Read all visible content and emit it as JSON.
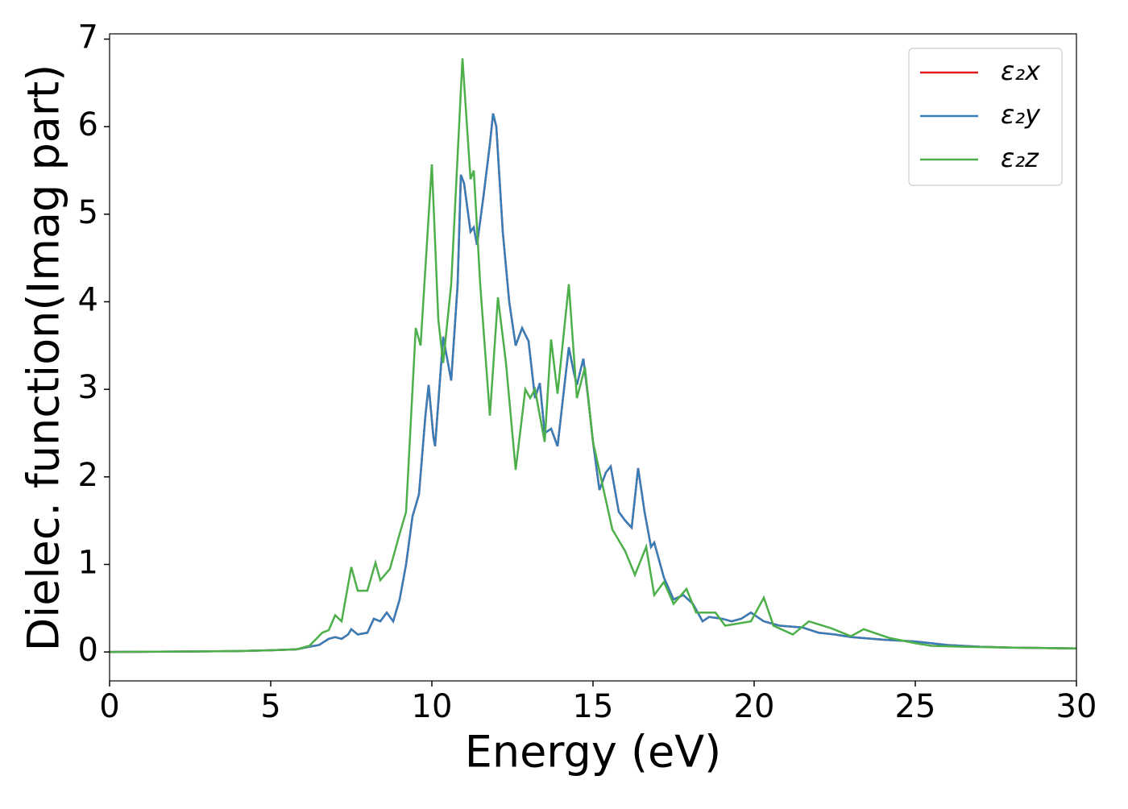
{
  "chart_data": {
    "type": "line",
    "x_label": "Energy (eV)",
    "y_label": "Dielec. function(Imag part)",
    "xlim": [
      0,
      30
    ],
    "ylim": [
      -0.33,
      7.06
    ],
    "xticks": [
      0,
      5,
      10,
      15,
      20,
      25,
      30
    ],
    "yticks": [
      0,
      1,
      2,
      3,
      4,
      5,
      6,
      7
    ],
    "legend": "upper right",
    "series": [
      {
        "name": "ε₂x",
        "color": "#e41a1c",
        "x": [
          0,
          2,
          4,
          5,
          5.8,
          6.2,
          6.5,
          6.8,
          7.0,
          7.2,
          7.4,
          7.5,
          7.7,
          8.0,
          8.2,
          8.4,
          8.6,
          8.8,
          9.0,
          9.2,
          9.4,
          9.6,
          9.8,
          9.9,
          10.05,
          10.1,
          10.35,
          10.5,
          10.6,
          10.8,
          10.9,
          11.0,
          11.2,
          11.3,
          11.4,
          11.6,
          11.8,
          11.9,
          12.0,
          12.2,
          12.4,
          12.6,
          12.8,
          13.0,
          13.2,
          13.35,
          13.5,
          13.7,
          13.9,
          14.1,
          14.25,
          14.4,
          14.5,
          14.7,
          14.85,
          15.0,
          15.2,
          15.4,
          15.55,
          15.8,
          16.0,
          16.2,
          16.4,
          16.6,
          16.8,
          16.9,
          17.2,
          17.5,
          17.8,
          18.1,
          18.4,
          18.6,
          19.0,
          19.3,
          19.6,
          19.9,
          20.3,
          20.8,
          21.5,
          22,
          22.5,
          23,
          24,
          25,
          26,
          27,
          28,
          29,
          30
        ],
        "values": [
          0,
          0.005,
          0.01,
          0.02,
          0.03,
          0.06,
          0.08,
          0.15,
          0.17,
          0.15,
          0.2,
          0.26,
          0.2,
          0.22,
          0.38,
          0.35,
          0.45,
          0.35,
          0.6,
          1.0,
          1.55,
          1.8,
          2.7,
          3.05,
          2.45,
          2.35,
          3.6,
          3.3,
          3.1,
          4.2,
          5.45,
          5.35,
          4.8,
          4.85,
          4.65,
          5.2,
          5.8,
          6.15,
          6.0,
          4.8,
          4.0,
          3.5,
          3.7,
          3.55,
          2.9,
          3.07,
          2.5,
          2.55,
          2.35,
          3.0,
          3.48,
          3.2,
          3.05,
          3.35,
          2.9,
          2.4,
          1.85,
          2.05,
          2.12,
          1.6,
          1.5,
          1.42,
          2.1,
          1.6,
          1.2,
          1.25,
          0.85,
          0.6,
          0.65,
          0.55,
          0.35,
          0.4,
          0.38,
          0.35,
          0.38,
          0.45,
          0.35,
          0.3,
          0.28,
          0.22,
          0.2,
          0.17,
          0.14,
          0.12,
          0.08,
          0.06,
          0.05,
          0.045,
          0.04
        ]
      },
      {
        "name": "ε₂y",
        "color": "#377eb8",
        "x": [
          0,
          2,
          4,
          5,
          5.8,
          6.2,
          6.5,
          6.8,
          7.0,
          7.2,
          7.4,
          7.5,
          7.7,
          8.0,
          8.2,
          8.4,
          8.6,
          8.8,
          9.0,
          9.2,
          9.4,
          9.6,
          9.8,
          9.9,
          10.05,
          10.1,
          10.35,
          10.5,
          10.6,
          10.8,
          10.9,
          11.0,
          11.2,
          11.3,
          11.4,
          11.6,
          11.8,
          11.9,
          12.0,
          12.2,
          12.4,
          12.6,
          12.8,
          13.0,
          13.2,
          13.35,
          13.5,
          13.7,
          13.9,
          14.1,
          14.25,
          14.4,
          14.5,
          14.7,
          14.85,
          15.0,
          15.2,
          15.4,
          15.55,
          15.8,
          16.0,
          16.2,
          16.4,
          16.6,
          16.8,
          16.9,
          17.2,
          17.5,
          17.8,
          18.1,
          18.4,
          18.6,
          19.0,
          19.3,
          19.6,
          19.9,
          20.3,
          20.8,
          21.5,
          22,
          22.5,
          23,
          24,
          25,
          26,
          27,
          28,
          29,
          30
        ],
        "values": [
          0,
          0.005,
          0.01,
          0.02,
          0.03,
          0.06,
          0.08,
          0.15,
          0.17,
          0.15,
          0.2,
          0.26,
          0.2,
          0.22,
          0.38,
          0.35,
          0.45,
          0.35,
          0.6,
          1.0,
          1.55,
          1.8,
          2.7,
          3.05,
          2.45,
          2.35,
          3.6,
          3.3,
          3.1,
          4.2,
          5.45,
          5.35,
          4.8,
          4.85,
          4.65,
          5.2,
          5.8,
          6.15,
          6.0,
          4.8,
          4.0,
          3.5,
          3.7,
          3.55,
          2.9,
          3.07,
          2.5,
          2.55,
          2.35,
          3.0,
          3.48,
          3.2,
          3.05,
          3.35,
          2.9,
          2.4,
          1.85,
          2.05,
          2.12,
          1.6,
          1.5,
          1.42,
          2.1,
          1.6,
          1.2,
          1.25,
          0.85,
          0.6,
          0.65,
          0.55,
          0.35,
          0.4,
          0.38,
          0.35,
          0.38,
          0.45,
          0.35,
          0.3,
          0.28,
          0.22,
          0.2,
          0.17,
          0.14,
          0.12,
          0.08,
          0.06,
          0.05,
          0.045,
          0.04
        ]
      },
      {
        "name": "ε₂z",
        "color": "#4daf4a",
        "x": [
          0,
          2,
          4,
          5,
          5.8,
          6.2,
          6.6,
          6.8,
          7.0,
          7.2,
          7.5,
          7.7,
          8.0,
          8.25,
          8.4,
          8.7,
          9.0,
          9.2,
          9.5,
          9.65,
          10.0,
          10.2,
          10.35,
          10.6,
          10.95,
          11.2,
          11.3,
          11.5,
          11.8,
          12.05,
          12.3,
          12.6,
          12.9,
          13.05,
          13.2,
          13.5,
          13.7,
          13.9,
          14.25,
          14.5,
          14.75,
          15.0,
          15.6,
          16.0,
          16.3,
          16.65,
          16.9,
          17.2,
          17.5,
          17.9,
          18.2,
          18.8,
          19.1,
          19.9,
          20.3,
          20.6,
          21.2,
          21.7,
          22.4,
          23.0,
          23.4,
          24.2,
          25,
          25.5,
          26.5,
          28,
          30
        ],
        "values": [
          0,
          0.005,
          0.01,
          0.02,
          0.03,
          0.07,
          0.22,
          0.25,
          0.42,
          0.35,
          0.97,
          0.7,
          0.7,
          1.02,
          0.82,
          0.95,
          1.35,
          1.6,
          3.7,
          3.5,
          5.57,
          3.8,
          3.3,
          4.2,
          6.78,
          5.4,
          5.5,
          4.2,
          2.7,
          4.05,
          3.3,
          2.08,
          3.0,
          2.9,
          3.0,
          2.4,
          3.57,
          2.95,
          4.2,
          2.9,
          3.25,
          2.4,
          1.4,
          1.15,
          0.88,
          1.2,
          0.65,
          0.8,
          0.55,
          0.72,
          0.45,
          0.45,
          0.3,
          0.35,
          0.62,
          0.3,
          0.2,
          0.35,
          0.27,
          0.18,
          0.26,
          0.16,
          0.1,
          0.07,
          0.06,
          0.05,
          0.04
        ]
      }
    ]
  }
}
